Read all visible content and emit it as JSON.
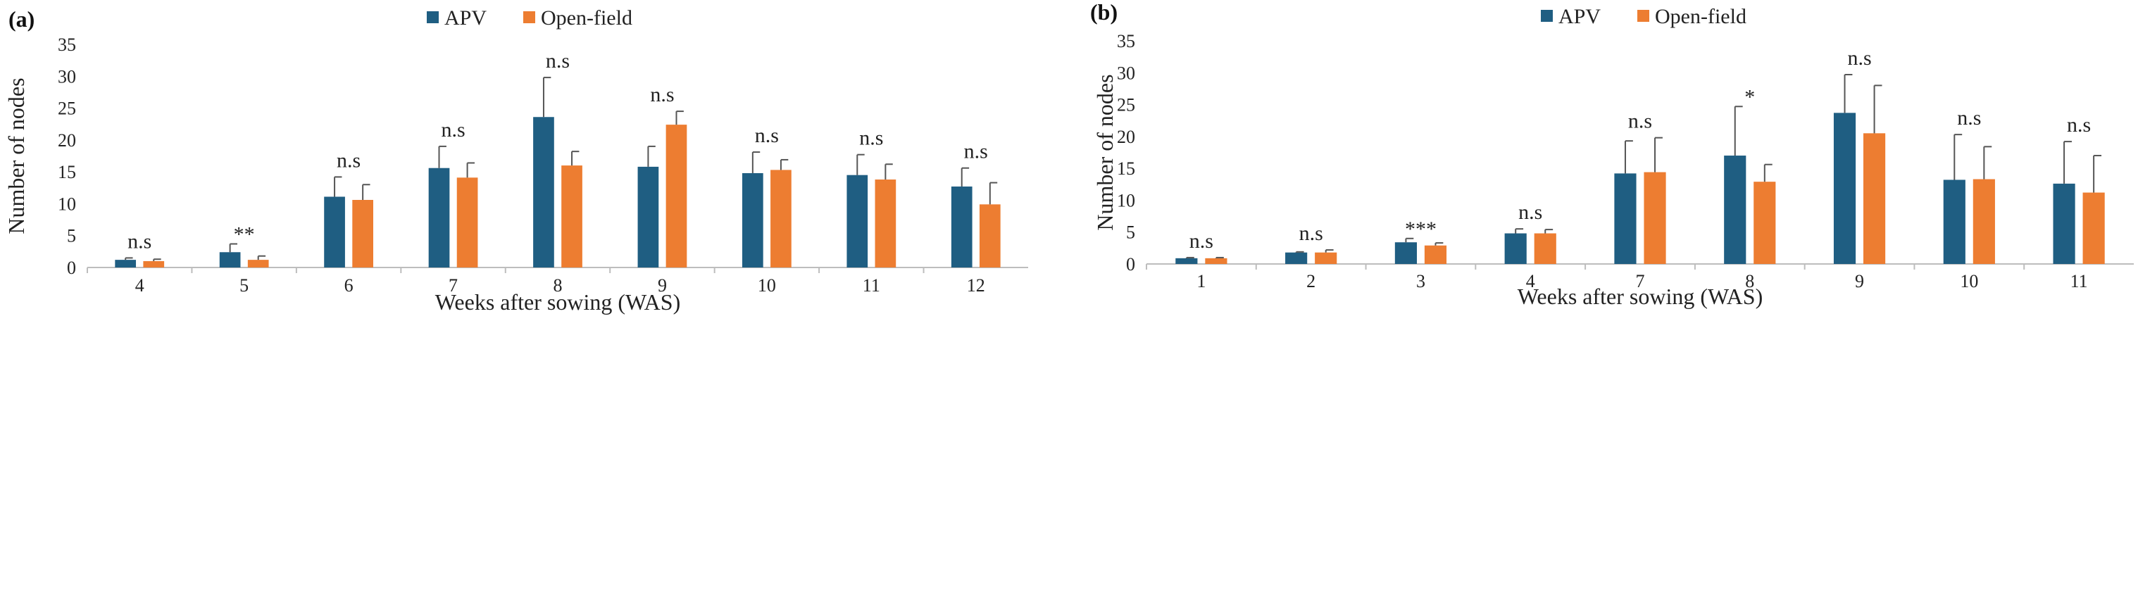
{
  "colors": {
    "apv": "#1f5e82",
    "open_field": "#ed7d31"
  },
  "chart_data": [
    {
      "type": "bar",
      "panel_label": "(a)",
      "legend": [
        "APV",
        "Open-field"
      ],
      "xlabel": "Weeks after sowing (WAS)",
      "ylabel": "Number of nodes",
      "ylim": [
        0,
        35
      ],
      "yticks": [
        0,
        5,
        10,
        15,
        20,
        25,
        30,
        35
      ],
      "categories": [
        "4",
        "5",
        "6",
        "7",
        "8",
        "9",
        "10",
        "11",
        "12"
      ],
      "series": [
        {
          "name": "APV",
          "values": [
            1.2,
            2.4,
            11.1,
            15.6,
            23.6,
            15.8,
            14.8,
            14.5,
            12.7
          ],
          "errors": [
            0.3,
            1.3,
            3.1,
            3.4,
            6.2,
            3.2,
            3.3,
            3.2,
            2.9
          ]
        },
        {
          "name": "Open-field",
          "values": [
            1.0,
            1.2,
            10.6,
            14.1,
            16.0,
            22.4,
            15.3,
            13.8,
            9.9
          ],
          "errors": [
            0.3,
            0.6,
            2.4,
            2.3,
            2.2,
            2.1,
            1.6,
            2.4,
            3.4
          ]
        }
      ],
      "significance": [
        "n.s",
        "**",
        "n.s",
        "n.s",
        "n.s",
        "n.s",
        "n.s",
        "n.s",
        "n.s"
      ]
    },
    {
      "type": "bar",
      "panel_label": "(b)",
      "legend": [
        "APV",
        "Open-field"
      ],
      "xlabel": "Weeks after sowing (WAS)",
      "ylabel": "Number of nodes",
      "ylim": [
        0,
        35
      ],
      "yticks": [
        0,
        5,
        10,
        15,
        20,
        25,
        30,
        35
      ],
      "categories": [
        "1",
        "2",
        "3",
        "4",
        "7",
        "8",
        "9",
        "10",
        "11"
      ],
      "series": [
        {
          "name": "APV",
          "values": [
            0.9,
            1.8,
            3.4,
            4.8,
            14.2,
            17.0,
            23.7,
            13.2,
            12.6
          ],
          "errors": [
            0.1,
            0.1,
            0.6,
            0.7,
            5.1,
            7.7,
            6.0,
            7.1,
            6.6
          ]
        },
        {
          "name": "Open-field",
          "values": [
            0.9,
            1.8,
            2.9,
            4.8,
            14.4,
            12.9,
            20.5,
            13.3,
            11.2
          ],
          "errors": [
            0.1,
            0.4,
            0.4,
            0.6,
            5.4,
            2.7,
            7.5,
            5.1,
            5.8
          ]
        }
      ],
      "significance": [
        "n.s",
        "n.s",
        "***",
        "n.s",
        "n.s",
        "*",
        "n.s",
        "n.s",
        "n.s"
      ]
    }
  ]
}
